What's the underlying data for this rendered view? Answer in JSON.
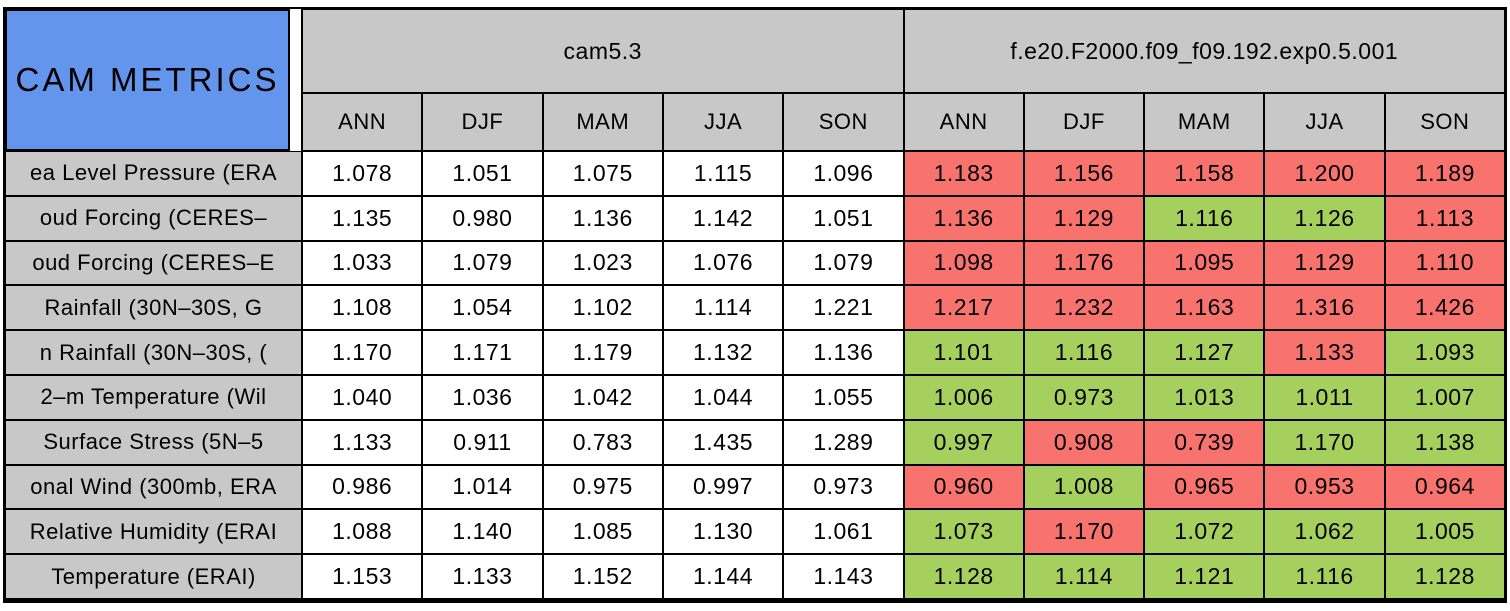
{
  "ui": {
    "colors": {
      "red": "#f8736e",
      "green": "#a6d05e",
      "blue": "#6495ed",
      "header_gray": "#c8c8c8",
      "cam53_cell": "#ffffff",
      "border": "#000000"
    }
  },
  "chart_data": {
    "type": "table",
    "title": "CAM METRICS",
    "column_groups": [
      "cam5.3",
      "f.e20.F2000.f09_f09.192.exp0.5.001"
    ],
    "seasons": [
      "ANN",
      "DJF",
      "MAM",
      "JJA",
      "SON"
    ],
    "color_coding": [
      "red",
      "green"
    ],
    "rows": [
      {
        "label": "ea Level Pressure (ERA",
        "cam53": [
          "1.078",
          "1.051",
          "1.075",
          "1.115",
          "1.096"
        ],
        "exp": [
          "1.183",
          "1.156",
          "1.158",
          "1.200",
          "1.189"
        ],
        "exp_colors": [
          "red",
          "red",
          "red",
          "red",
          "red"
        ]
      },
      {
        "label": "oud Forcing (CERES–",
        "cam53": [
          "1.135",
          "0.980",
          "1.136",
          "1.142",
          "1.051"
        ],
        "exp": [
          "1.136",
          "1.129",
          "1.116",
          "1.126",
          "1.113"
        ],
        "exp_colors": [
          "red",
          "red",
          "green",
          "green",
          "red"
        ]
      },
      {
        "label": "oud Forcing (CERES–E",
        "cam53": [
          "1.033",
          "1.079",
          "1.023",
          "1.076",
          "1.079"
        ],
        "exp": [
          "1.098",
          "1.176",
          "1.095",
          "1.129",
          "1.110"
        ],
        "exp_colors": [
          "red",
          "red",
          "red",
          "red",
          "red"
        ]
      },
      {
        "label": "Rainfall (30N–30S, G",
        "cam53": [
          "1.108",
          "1.054",
          "1.102",
          "1.114",
          "1.221"
        ],
        "exp": [
          "1.217",
          "1.232",
          "1.163",
          "1.316",
          "1.426"
        ],
        "exp_colors": [
          "red",
          "red",
          "red",
          "red",
          "red"
        ]
      },
      {
        "label": "n Rainfall (30N–30S, (",
        "cam53": [
          "1.170",
          "1.171",
          "1.179",
          "1.132",
          "1.136"
        ],
        "exp": [
          "1.101",
          "1.116",
          "1.127",
          "1.133",
          "1.093"
        ],
        "exp_colors": [
          "green",
          "green",
          "green",
          "red",
          "green"
        ]
      },
      {
        "label": "2–m Temperature (Wil",
        "cam53": [
          "1.040",
          "1.036",
          "1.042",
          "1.044",
          "1.055"
        ],
        "exp": [
          "1.006",
          "0.973",
          "1.013",
          "1.011",
          "1.007"
        ],
        "exp_colors": [
          "green",
          "green",
          "green",
          "green",
          "green"
        ]
      },
      {
        "label": "Surface Stress (5N–5",
        "cam53": [
          "1.133",
          "0.911",
          "0.783",
          "1.435",
          "1.289"
        ],
        "exp": [
          "0.997",
          "0.908",
          "0.739",
          "1.170",
          "1.138"
        ],
        "exp_colors": [
          "green",
          "red",
          "red",
          "green",
          "green"
        ]
      },
      {
        "label": "onal Wind (300mb, ERA",
        "cam53": [
          "0.986",
          "1.014",
          "0.975",
          "0.997",
          "0.973"
        ],
        "exp": [
          "0.960",
          "1.008",
          "0.965",
          "0.953",
          "0.964"
        ],
        "exp_colors": [
          "red",
          "green",
          "red",
          "red",
          "red"
        ]
      },
      {
        "label": "Relative Humidity (ERAI",
        "cam53": [
          "1.088",
          "1.140",
          "1.085",
          "1.130",
          "1.061"
        ],
        "exp": [
          "1.073",
          "1.170",
          "1.072",
          "1.062",
          "1.005"
        ],
        "exp_colors": [
          "green",
          "red",
          "green",
          "green",
          "green"
        ]
      },
      {
        "label": "Temperature (ERAI)",
        "cam53": [
          "1.153",
          "1.133",
          "1.152",
          "1.144",
          "1.143"
        ],
        "exp": [
          "1.128",
          "1.114",
          "1.121",
          "1.116",
          "1.128"
        ],
        "exp_colors": [
          "green",
          "green",
          "green",
          "green",
          "green"
        ]
      }
    ]
  }
}
